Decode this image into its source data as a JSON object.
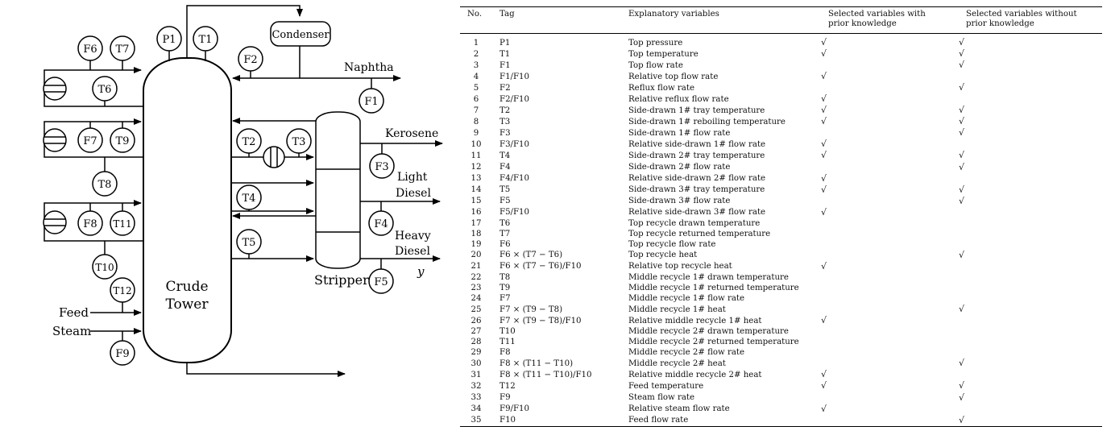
{
  "diagram": {
    "tower_label_line1": "Crude",
    "tower_label_line2": "Tower",
    "condenser_label": "Condenser",
    "stripper_label": "Stripper",
    "naphtha_label": "Naphtha",
    "kerosene_label": "Kerosene",
    "light_diesel_line1": "Light",
    "light_diesel_line2": "Diesel",
    "heavy_diesel_line1": "Heavy",
    "heavy_diesel_line2": "Diesel",
    "y_label": "y",
    "feed_label": "Feed",
    "steam_label": "Steam",
    "instruments": {
      "P1": "P1",
      "T1": "T1",
      "F2": "F2",
      "F1": "F1",
      "F6": "F6",
      "T7": "T7",
      "T6": "T6",
      "F7": "F7",
      "T9": "T9",
      "T8": "T8",
      "F8": "F8",
      "T11": "T11",
      "T10": "T10",
      "T12": "T12",
      "F9": "F9",
      "T2": "T2",
      "T3": "T3",
      "T4": "T4",
      "T5": "T5",
      "F3": "F3",
      "F4": "F4",
      "F5": "F5"
    }
  },
  "table": {
    "headers": {
      "no": "No.",
      "tag": "Tag",
      "explanatory": "Explanatory variables",
      "with_line1": "Selected variables with",
      "with_line2": "prior knowledge",
      "without_line1": "Selected variables without",
      "without_line2": "prior knowledge"
    },
    "check_symbol": "√",
    "rows": [
      {
        "no": "1",
        "tag": "P1",
        "desc": "Top pressure",
        "with": "√",
        "without": "√"
      },
      {
        "no": "2",
        "tag": "T1",
        "desc": "Top temperature",
        "with": "√",
        "without": "√"
      },
      {
        "no": "3",
        "tag": "F1",
        "desc": "Top flow rate",
        "with": "",
        "without": "√"
      },
      {
        "no": "4",
        "tag": "F1/F10",
        "desc": "Relative top flow rate",
        "with": "√",
        "without": ""
      },
      {
        "no": "5",
        "tag": "F2",
        "desc": "Reflux flow rate",
        "with": "",
        "without": "√"
      },
      {
        "no": "6",
        "tag": "F2/F10",
        "desc": "Relative reflux flow rate",
        "with": "√",
        "without": ""
      },
      {
        "no": "7",
        "tag": "T2",
        "desc": "Side-drawn 1# tray temperature",
        "with": "√",
        "without": "√"
      },
      {
        "no": "8",
        "tag": "T3",
        "desc": "Side-drawn 1# reboiling temperature",
        "with": "√",
        "without": "√"
      },
      {
        "no": "9",
        "tag": "F3",
        "desc": "Side-drawn 1# flow rate",
        "with": "",
        "without": "√"
      },
      {
        "no": "10",
        "tag": "F3/F10",
        "desc": "Relative side-drawn 1# flow rate",
        "with": "√",
        "without": ""
      },
      {
        "no": "11",
        "tag": "T4",
        "desc": "Side-drawn 2# tray temperature",
        "with": "√",
        "without": "√"
      },
      {
        "no": "12",
        "tag": "F4",
        "desc": "Side-drawn 2# flow rate",
        "with": "",
        "without": "√"
      },
      {
        "no": "13",
        "tag": "F4/F10",
        "desc": "Relative side-drawn 2# flow rate",
        "with": "√",
        "without": ""
      },
      {
        "no": "14",
        "tag": "T5",
        "desc": "Side-drawn 3# tray temperature",
        "with": "√",
        "without": "√"
      },
      {
        "no": "15",
        "tag": "F5",
        "desc": "Side-drawn 3# flow rate",
        "with": "",
        "without": "√"
      },
      {
        "no": "16",
        "tag": "F5/F10",
        "desc": "Relative side-drawn 3# flow rate",
        "with": "√",
        "without": ""
      },
      {
        "no": "17",
        "tag": "T6",
        "desc": "Top recycle drawn temperature",
        "with": "",
        "without": ""
      },
      {
        "no": "18",
        "tag": "T7",
        "desc": "Top recycle returned temperature",
        "with": "",
        "without": ""
      },
      {
        "no": "19",
        "tag": "F6",
        "desc": "Top recycle flow rate",
        "with": "",
        "without": ""
      },
      {
        "no": "20",
        "tag": "F6 × (T7 − T6)",
        "desc": "Top recycle heat",
        "with": "",
        "without": "√"
      },
      {
        "no": "21",
        "tag": "F6 × (T7 − T6)/F10",
        "desc": "Relative top recycle heat",
        "with": "√",
        "without": ""
      },
      {
        "no": "22",
        "tag": "T8",
        "desc": "Middle recycle 1# drawn temperature",
        "with": "",
        "without": ""
      },
      {
        "no": "23",
        "tag": "T9",
        "desc": "Middle recycle 1# returned temperature",
        "with": "",
        "without": ""
      },
      {
        "no": "24",
        "tag": "F7",
        "desc": "Middle recycle 1# flow rate",
        "with": "",
        "without": ""
      },
      {
        "no": "25",
        "tag": "F7 × (T9 − T8)",
        "desc": "Middle recycle 1# heat",
        "with": "",
        "without": "√"
      },
      {
        "no": "26",
        "tag": "F7 × (T9 − T8)/F10",
        "desc": "Relative middle recycle 1# heat",
        "with": "√",
        "without": ""
      },
      {
        "no": "27",
        "tag": "T10",
        "desc": "Middle recycle 2# drawn temperature",
        "with": "",
        "without": ""
      },
      {
        "no": "28",
        "tag": "T11",
        "desc": "Middle recycle 2# returned temperature",
        "with": "",
        "without": ""
      },
      {
        "no": "29",
        "tag": "F8",
        "desc": "Middle recycle 2# flow rate",
        "with": "",
        "without": ""
      },
      {
        "no": "30",
        "tag": "F8 × (T11 − T10)",
        "desc": "Middle recycle 2# heat",
        "with": "",
        "without": "√"
      },
      {
        "no": "31",
        "tag": "F8 × (T11 − T10)/F10",
        "desc": "Relative middle recycle 2# heat",
        "with": "√",
        "without": ""
      },
      {
        "no": "32",
        "tag": "T12",
        "desc": "Feed temperature",
        "with": "√",
        "without": "√"
      },
      {
        "no": "33",
        "tag": "F9",
        "desc": "Steam flow rate",
        "with": "",
        "without": "√"
      },
      {
        "no": "34",
        "tag": "F9/F10",
        "desc": "Relative steam flow rate",
        "with": "√",
        "without": ""
      },
      {
        "no": "35",
        "tag": "F10",
        "desc": "Feed flow rate",
        "with": "",
        "without": "√"
      }
    ]
  }
}
